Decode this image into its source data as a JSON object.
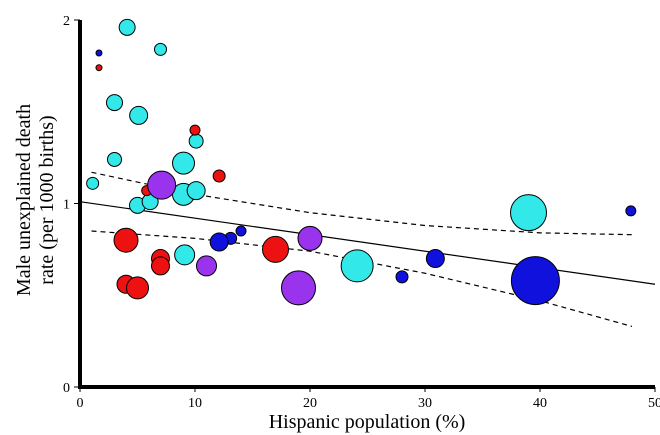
{
  "chart_data": {
    "type": "scatter",
    "xlabel": "Hispanic population (%)",
    "ylabel": [
      "Male unexplained death",
      "rate (per 1000 births)"
    ],
    "xlim": [
      0,
      50
    ],
    "ylim": [
      0,
      2
    ],
    "xticks": [
      0,
      10,
      20,
      30,
      40,
      50
    ],
    "yticks": [
      0,
      1,
      2
    ],
    "series": [
      {
        "color": "#33e8e8",
        "x": [
          4.1,
          7.0,
          3.0,
          5.1,
          10.1,
          3.0,
          9.0,
          1.1,
          9.0,
          10.1,
          5.0,
          6.1,
          39.0,
          9.1,
          24.1
        ],
        "values": [
          1.96,
          1.84,
          1.55,
          1.48,
          1.34,
          1.24,
          1.22,
          1.11,
          1.05,
          1.07,
          0.99,
          1.01,
          0.95,
          0.72,
          0.66
        ],
        "sizes": [
          8,
          6,
          8,
          9,
          7,
          7,
          11,
          6,
          11,
          9,
          8,
          8,
          18,
          10,
          16
        ]
      },
      {
        "color": "#ee1111",
        "x": [
          1.65,
          10.0,
          12.1,
          5.8,
          4.0,
          7.0,
          7.0,
          17.0,
          4.0,
          5.0
        ],
        "values": [
          1.74,
          1.4,
          1.15,
          1.07,
          0.8,
          0.7,
          0.66,
          0.75,
          0.56,
          0.54
        ],
        "sizes": [
          3,
          5,
          6,
          5,
          12,
          9,
          9,
          13,
          9,
          11
        ]
      },
      {
        "color": "#1111dd",
        "x": [
          1.65,
          14.0,
          13.1,
          12.1,
          30.9,
          28.0,
          47.9,
          39.6
        ],
        "values": [
          1.82,
          0.85,
          0.81,
          0.79,
          0.7,
          0.6,
          0.96,
          0.58
        ],
        "sizes": [
          3,
          5,
          6,
          9,
          9,
          6,
          5,
          24
        ]
      },
      {
        "color": "#9933ee",
        "x": [
          7.1,
          20.0,
          11.0,
          19.0
        ],
        "values": [
          1.1,
          0.81,
          0.66,
          0.54
        ],
        "sizes": [
          14,
          12,
          10,
          17
        ]
      }
    ],
    "lines": [
      {
        "dash": false,
        "x": [
          0,
          50
        ],
        "values": [
          1.01,
          0.56
        ]
      },
      {
        "dash": true,
        "x": [
          1,
          10,
          20,
          30,
          40,
          48
        ],
        "values": [
          1.17,
          1.05,
          0.95,
          0.88,
          0.84,
          0.83
        ]
      },
      {
        "dash": true,
        "x": [
          1,
          10,
          20,
          30,
          40,
          48
        ],
        "values": [
          0.85,
          0.81,
          0.74,
          0.62,
          0.47,
          0.33
        ]
      }
    ]
  }
}
